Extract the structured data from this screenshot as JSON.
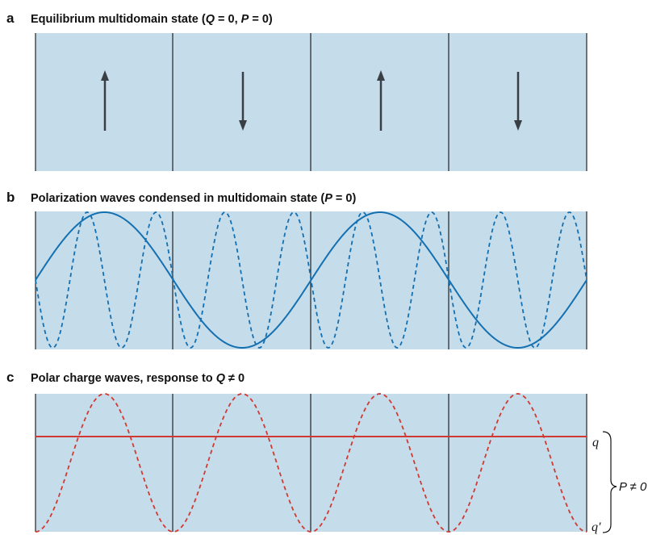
{
  "panel_a": {
    "letter": "a",
    "title_parts": [
      "Equilibrium multidomain state (",
      "Q",
      " = 0, ",
      "P",
      " = 0)"
    ],
    "polarization_arrows": [
      "up",
      "down",
      "up",
      "down"
    ]
  },
  "panel_b": {
    "letter": "b",
    "title_parts": [
      "Polarization waves condensed in multidomain state (",
      "P",
      " = 0)"
    ]
  },
  "panel_c": {
    "letter": "c",
    "title_parts": [
      "Polar charge waves, response to ",
      "Q",
      " ≠ 0"
    ],
    "label_q": "q",
    "label_q_prime": "q′",
    "label_p_nonzero": "P ≠ 0"
  },
  "colors": {
    "domain_fill": "#c5dceb",
    "wall": "#222222",
    "arrow": "#3a3f45",
    "polarization_wave": "#1470b0",
    "charge_wave": "#d13a32"
  }
}
